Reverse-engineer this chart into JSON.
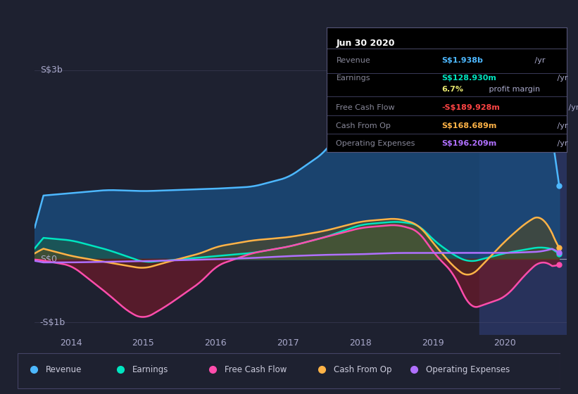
{
  "bg_color": "#1e2130",
  "x_labels": [
    "2014",
    "2015",
    "2016",
    "2017",
    "2018",
    "2019",
    "2020"
  ],
  "colors": {
    "revenue": "#4db8ff",
    "earnings": "#00e5c0",
    "free_cash_flow": "#ff4dac",
    "cash_from_op": "#ffb347",
    "operating_expenses": "#b070ff"
  },
  "legend": [
    {
      "label": "Revenue",
      "color": "#4db8ff"
    },
    {
      "label": "Earnings",
      "color": "#00e5c0"
    },
    {
      "label": "Free Cash Flow",
      "color": "#ff4dac"
    },
    {
      "label": "Cash From Op",
      "color": "#ffb347"
    },
    {
      "label": "Operating Expenses",
      "color": "#b070ff"
    }
  ],
  "info_box": {
    "title": "Jun 30 2020",
    "rows": [
      {
        "label": "Revenue",
        "value": "S$1.938b",
        "value_color": "#4db8ff",
        "suffix": " /yr"
      },
      {
        "label": "Earnings",
        "value": "S$128.930m",
        "value_color": "#00e5c0",
        "suffix": " /yr"
      },
      {
        "label": "",
        "value": "6.7%",
        "value_color": "#e8e870",
        "suffix": " profit margin"
      },
      {
        "label": "Free Cash Flow",
        "value": "-S$189.928m",
        "value_color": "#ff4444",
        "suffix": " /yr"
      },
      {
        "label": "Cash From Op",
        "value": "S$168.689m",
        "value_color": "#ffb347",
        "suffix": " /yr"
      },
      {
        "label": "Operating Expenses",
        "value": "S$196.209m",
        "value_color": "#b070ff",
        "suffix": " /yr"
      }
    ]
  }
}
